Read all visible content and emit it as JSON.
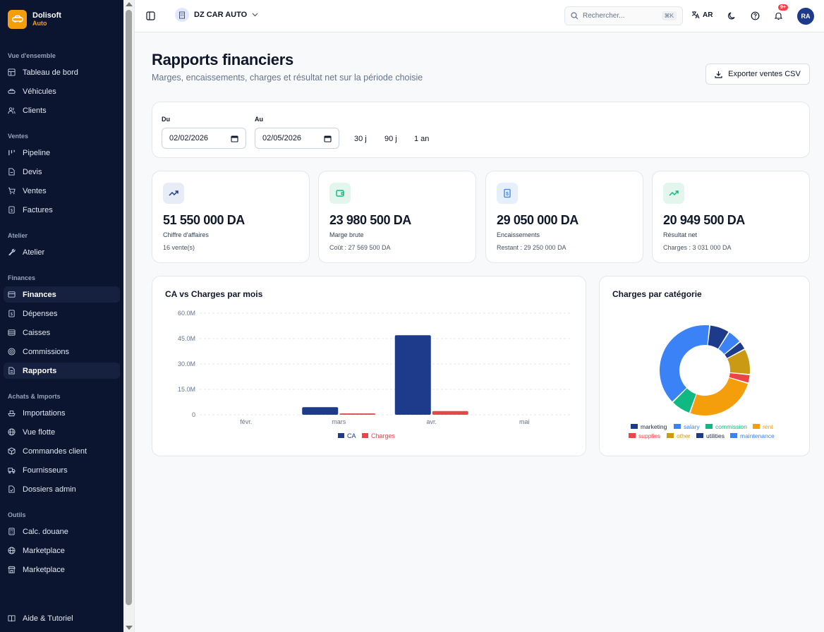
{
  "brand": {
    "name": "Dolisoft",
    "sub": "Auto"
  },
  "sidebar": {
    "sections": [
      {
        "title": "Vue d'ensemble",
        "items": [
          {
            "label": "Tableau de bord",
            "icon": "dashboard-icon"
          },
          {
            "label": "Véhicules",
            "icon": "car-icon"
          },
          {
            "label": "Clients",
            "icon": "users-icon"
          }
        ]
      },
      {
        "title": "Ventes",
        "items": [
          {
            "label": "Pipeline",
            "icon": "kanban-icon"
          },
          {
            "label": "Devis",
            "icon": "document-icon"
          },
          {
            "label": "Ventes",
            "icon": "cart-icon"
          },
          {
            "label": "Factures",
            "icon": "invoice-icon"
          }
        ]
      },
      {
        "title": "Atelier",
        "items": [
          {
            "label": "Atelier",
            "icon": "wrench-icon"
          }
        ]
      },
      {
        "title": "Finances",
        "items": [
          {
            "label": "Finances",
            "icon": "wallet-icon",
            "active": true
          },
          {
            "label": "Dépenses",
            "icon": "receipt-icon"
          },
          {
            "label": "Caisses",
            "icon": "cashbox-icon"
          },
          {
            "label": "Commissions",
            "icon": "target-icon"
          },
          {
            "label": "Rapports",
            "icon": "report-icon",
            "active": true
          }
        ]
      },
      {
        "title": "Achats & Imports",
        "items": [
          {
            "label": "Importations",
            "icon": "ship-icon"
          },
          {
            "label": "Vue flotte",
            "icon": "globe-icon"
          },
          {
            "label": "Commandes client",
            "icon": "package-icon"
          },
          {
            "label": "Fournisseurs",
            "icon": "truck-icon"
          },
          {
            "label": "Dossiers admin",
            "icon": "folder-check-icon"
          }
        ]
      },
      {
        "title": "Outils",
        "items": [
          {
            "label": "Calc. douane",
            "icon": "calculator-icon"
          },
          {
            "label": "Marketplace",
            "icon": "globe-icon"
          },
          {
            "label": "Marketplace",
            "icon": "store-icon"
          }
        ]
      }
    ],
    "bottom": {
      "label": "Aide & Tutoriel",
      "icon": "book-icon"
    }
  },
  "topbar": {
    "company": "DZ CAR AUTO",
    "search_placeholder": "Rechercher...",
    "search_shortcut": "⌘K",
    "lang": "AR",
    "notif_count": "9+",
    "avatar": "RA"
  },
  "page": {
    "title": "Rapports financiers",
    "subtitle": "Marges, encaissements, charges et résultat net sur la période choisie",
    "export_label": "Exporter ventes CSV"
  },
  "filters": {
    "from_label": "Du",
    "from_value": "02/02/2026",
    "to_label": "Au",
    "to_value": "02/05/2026",
    "presets": [
      "30 j",
      "90 j",
      "1 an"
    ]
  },
  "stats": [
    {
      "value": "51 550 000 DA",
      "label": "Chiffre d'affaires",
      "sub": "16 vente(s)",
      "icon": "trending-up-icon",
      "color": "#1e3a8a",
      "bg": "#e8ecf7"
    },
    {
      "value": "23 980 500 DA",
      "label": "Marge brute",
      "sub": "Coût : 27 569 500 DA",
      "icon": "wallet-icon",
      "color": "#10b981",
      "bg": "#e3f6ee"
    },
    {
      "value": "29 050 000 DA",
      "label": "Encaissements",
      "sub": "Restant : 29 250 000 DA",
      "icon": "receipt-icon",
      "color": "#3b82f6",
      "bg": "#e6effc"
    },
    {
      "value": "20 949 500 DA",
      "label": "Résultat net",
      "sub": "Charges : 3 031 000 DA",
      "icon": "trending-up-icon",
      "color": "#10b981",
      "bg": "#e3f6ee"
    }
  ],
  "colors": {
    "primary": "#1e3a8a",
    "accent": "#f59e0b",
    "sidebar": "#0b1530"
  },
  "chart_data": [
    {
      "type": "bar",
      "title": "CA vs Charges par mois",
      "categories": [
        "févr.",
        "mars",
        "avr.",
        "mai"
      ],
      "series": [
        {
          "name": "CA",
          "values": [
            0,
            4500000,
            47000000,
            0
          ],
          "color": "#1e3a8a"
        },
        {
          "name": "Charges",
          "values": [
            0,
            800000,
            2200000,
            0
          ],
          "color": "#e54848"
        }
      ],
      "yticks": [
        "0",
        "15.0M",
        "30.0M",
        "45.0M",
        "60.0M"
      ],
      "ylim": [
        0,
        60000000
      ],
      "grid": true,
      "legend": "bottom"
    },
    {
      "type": "pie",
      "title": "Charges par catégorie",
      "categories": [
        "marketing",
        "salary",
        "commission",
        "rent",
        "supplies",
        "other",
        "utilities",
        "maintenance"
      ],
      "slices": [
        {
          "name": "salary",
          "value": 38,
          "color": "#3b82f6"
        },
        {
          "name": "marketing",
          "value": 7,
          "color": "#1e3a8a"
        },
        {
          "name": "maintenance",
          "value": 5,
          "color": "#3b82f6"
        },
        {
          "name": "utilities",
          "value": 3,
          "color": "#1e3a8a"
        },
        {
          "name": "other",
          "value": 9,
          "color": "#ca9a15"
        },
        {
          "name": "supplies",
          "value": 3,
          "color": "#ef4444"
        },
        {
          "name": "rent",
          "value": 25,
          "color": "#f59e0b"
        },
        {
          "name": "commission",
          "value": 7,
          "color": "#10b981"
        }
      ],
      "legend": [
        {
          "name": "marketing",
          "color": "#1e3a8a"
        },
        {
          "name": "salary",
          "color": "#3b82f6"
        },
        {
          "name": "commission",
          "color": "#10b981"
        },
        {
          "name": "rent",
          "color": "#f59e0b"
        },
        {
          "name": "supplies",
          "color": "#ef4444"
        },
        {
          "name": "other",
          "color": "#ca9a15"
        },
        {
          "name": "utilities",
          "color": "#1e3a8a"
        },
        {
          "name": "maintenance",
          "color": "#3b82f6"
        }
      ]
    }
  ]
}
